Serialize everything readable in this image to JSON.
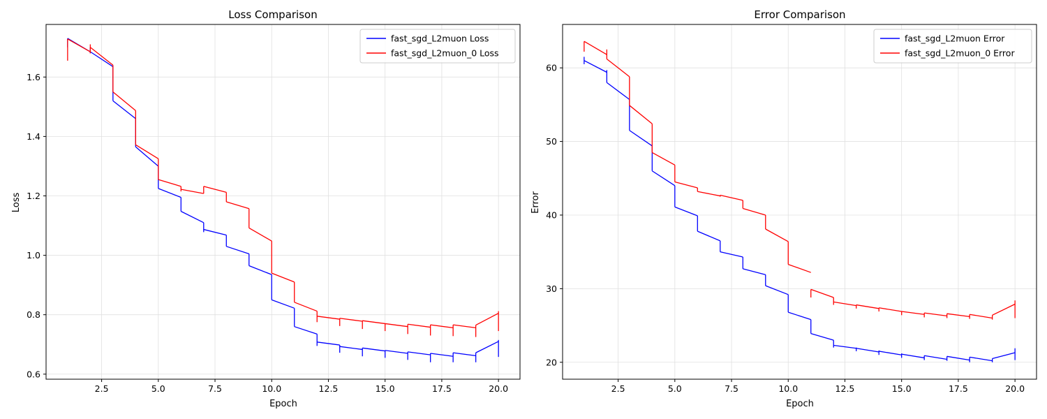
{
  "chart_data": [
    {
      "type": "line",
      "title": "Loss Comparison",
      "xlabel": "Epoch",
      "ylabel": "Loss",
      "xlim": [
        0.05,
        20.95
      ],
      "ylim": [
        0.583,
        1.777
      ],
      "xticks": [
        2.5,
        5.0,
        7.5,
        10.0,
        12.5,
        15.0,
        17.5,
        20.0
      ],
      "xtick_labels": [
        "2.5",
        "5.0",
        "7.5",
        "10.0",
        "12.5",
        "15.0",
        "17.5",
        "20.0"
      ],
      "yticks": [
        0.6,
        0.8,
        1.0,
        1.2,
        1.4,
        1.6
      ],
      "ytick_labels": [
        "0.6",
        "0.8",
        "1.0",
        "1.2",
        "1.4",
        "1.6"
      ],
      "grid": true,
      "legend_position": "top-right",
      "series": [
        {
          "name": "fast_sgd_L2muon Loss",
          "color": "#0000ff",
          "segments": [
            {
              "x0": 1,
              "y0": 1.73,
              "x1": 2,
              "y1": 1.685,
              "spike": [
                1.7,
                1.73
              ]
            },
            {
              "x0": 2,
              "y0": 1.685,
              "x1": 3,
              "y1": 1.635,
              "spike": [
                1.68,
                1.7
              ]
            },
            {
              "x0": 3,
              "y0": 1.52,
              "x1": 4,
              "y1": 1.46,
              "spike": [
                1.52,
                1.635
              ]
            },
            {
              "x0": 4,
              "y0": 1.365,
              "x1": 5,
              "y1": 1.3,
              "spike": [
                1.365,
                1.46
              ]
            },
            {
              "x0": 5,
              "y0": 1.225,
              "x1": 6,
              "y1": 1.195,
              "spike": [
                1.225,
                1.3
              ]
            },
            {
              "x0": 6,
              "y0": 1.148,
              "x1": 7,
              "y1": 1.11,
              "spike": [
                1.148,
                1.195
              ]
            },
            {
              "x0": 7,
              "y0": 1.087,
              "x1": 8,
              "y1": 1.068,
              "spike": [
                1.078,
                1.11
              ]
            },
            {
              "x0": 8,
              "y0": 1.03,
              "x1": 9,
              "y1": 1.005,
              "spike": [
                1.03,
                1.068
              ]
            },
            {
              "x0": 9,
              "y0": 0.965,
              "x1": 10,
              "y1": 0.935,
              "spike": [
                0.965,
                1.005
              ]
            },
            {
              "x0": 10,
              "y0": 0.85,
              "x1": 11,
              "y1": 0.822,
              "spike": [
                0.85,
                0.935
              ]
            },
            {
              "x0": 11,
              "y0": 0.76,
              "x1": 12,
              "y1": 0.735,
              "spike": [
                0.76,
                0.822
              ]
            },
            {
              "x0": 12,
              "y0": 0.708,
              "x1": 13,
              "y1": 0.698,
              "spike": [
                0.695,
                0.735
              ]
            },
            {
              "x0": 13,
              "y0": 0.693,
              "x1": 14,
              "y1": 0.683,
              "spike": [
                0.672,
                0.698
              ]
            },
            {
              "x0": 14,
              "y0": 0.688,
              "x1": 15,
              "y1": 0.678,
              "spike": [
                0.66,
                0.688
              ]
            },
            {
              "x0": 15,
              "y0": 0.68,
              "x1": 16,
              "y1": 0.67,
              "spike": [
                0.655,
                0.68
              ]
            },
            {
              "x0": 16,
              "y0": 0.675,
              "x1": 17,
              "y1": 0.665,
              "spike": [
                0.648,
                0.675
              ]
            },
            {
              "x0": 17,
              "y0": 0.67,
              "x1": 18,
              "y1": 0.66,
              "spike": [
                0.64,
                0.67
              ]
            },
            {
              "x0": 18,
              "y0": 0.672,
              "x1": 19,
              "y1": 0.662,
              "spike": [
                0.64,
                0.672
              ]
            },
            {
              "x0": 19,
              "y0": 0.672,
              "x1": 20,
              "y1": 0.71,
              "spike": [
                0.64,
                0.672
              ]
            }
          ],
          "final_spike": {
            "x": 20,
            "y": [
              0.658,
              0.715
            ]
          }
        },
        {
          "name": "fast_sgd_L2muon_0 Loss",
          "color": "#ff0000",
          "segments": [
            {
              "x0": 1,
              "y0": 1.728,
              "x1": 2,
              "y1": 1.685,
              "spike": [
                1.655,
                1.728
              ]
            },
            {
              "x0": 2,
              "y0": 1.7,
              "x1": 3,
              "y1": 1.64,
              "spike": [
                1.68,
                1.71
              ]
            },
            {
              "x0": 3,
              "y0": 1.55,
              "x1": 4,
              "y1": 1.487,
              "spike": [
                1.55,
                1.64
              ]
            },
            {
              "x0": 4,
              "y0": 1.372,
              "x1": 5,
              "y1": 1.325,
              "spike": [
                1.372,
                1.487
              ]
            },
            {
              "x0": 5,
              "y0": 1.255,
              "x1": 6,
              "y1": 1.232,
              "spike": [
                1.255,
                1.325
              ]
            },
            {
              "x0": 6,
              "y0": 1.222,
              "x1": 7,
              "y1": 1.208,
              "spike": [
                1.215,
                1.232
              ]
            },
            {
              "x0": 7,
              "y0": 1.232,
              "x1": 8,
              "y1": 1.212,
              "spike": [
                1.208,
                1.232
              ]
            },
            {
              "x0": 8,
              "y0": 1.18,
              "x1": 9,
              "y1": 1.157,
              "spike": [
                1.18,
                1.212
              ]
            },
            {
              "x0": 9,
              "y0": 1.092,
              "x1": 10,
              "y1": 1.048,
              "spike": [
                1.092,
                1.157
              ]
            },
            {
              "x0": 10,
              "y0": 0.94,
              "x1": 11,
              "y1": 0.91,
              "spike": [
                0.94,
                1.048
              ]
            },
            {
              "x0": 11,
              "y0": 0.842,
              "x1": 12,
              "y1": 0.812,
              "spike": [
                0.842,
                0.91
              ]
            },
            {
              "x0": 12,
              "y0": 0.795,
              "x1": 13,
              "y1": 0.785,
              "spike": [
                0.775,
                0.812
              ]
            },
            {
              "x0": 13,
              "y0": 0.788,
              "x1": 14,
              "y1": 0.778,
              "spike": [
                0.762,
                0.788
              ]
            },
            {
              "x0": 14,
              "y0": 0.78,
              "x1": 15,
              "y1": 0.77,
              "spike": [
                0.752,
                0.78
              ]
            },
            {
              "x0": 15,
              "y0": 0.77,
              "x1": 16,
              "y1": 0.76,
              "spike": [
                0.745,
                0.77
              ]
            },
            {
              "x0": 16,
              "y0": 0.768,
              "x1": 17,
              "y1": 0.758,
              "spike": [
                0.735,
                0.768
              ]
            },
            {
              "x0": 17,
              "y0": 0.766,
              "x1": 18,
              "y1": 0.756,
              "spike": [
                0.73,
                0.766
              ]
            },
            {
              "x0": 18,
              "y0": 0.766,
              "x1": 19,
              "y1": 0.756,
              "spike": [
                0.728,
                0.766
              ]
            },
            {
              "x0": 19,
              "y0": 0.765,
              "x1": 20,
              "y1": 0.805,
              "spike": [
                0.725,
                0.765
              ]
            }
          ],
          "final_spike": {
            "x": 20,
            "y": [
              0.745,
              0.812
            ]
          }
        }
      ]
    },
    {
      "type": "line",
      "title": "Error Comparison",
      "xlabel": "Epoch",
      "ylabel": "Error",
      "xlim": [
        0.05,
        20.95
      ],
      "ylim": [
        17.7,
        65.9
      ],
      "xticks": [
        2.5,
        5.0,
        7.5,
        10.0,
        12.5,
        15.0,
        17.5,
        20.0
      ],
      "xtick_labels": [
        "2.5",
        "5.0",
        "7.5",
        "10.0",
        "12.5",
        "15.0",
        "17.5",
        "20.0"
      ],
      "yticks": [
        20,
        30,
        40,
        50,
        60
      ],
      "ytick_labels": [
        "20",
        "30",
        "40",
        "50",
        "60"
      ],
      "grid": true,
      "legend_position": "top-right",
      "series": [
        {
          "name": "fast_sgd_L2muon Error",
          "color": "#0000ff",
          "segments": [
            {
              "x0": 1,
              "y0": 61.0,
              "x1": 2,
              "y1": 59.4,
              "spike": [
                60.5,
                61.5
              ]
            },
            {
              "x0": 2,
              "y0": 58.0,
              "x1": 3,
              "y1": 55.7,
              "spike": [
                58.0,
                59.7
              ]
            },
            {
              "x0": 3,
              "y0": 51.5,
              "x1": 4,
              "y1": 49.4,
              "spike": [
                51.5,
                55.7
              ]
            },
            {
              "x0": 4,
              "y0": 46.0,
              "x1": 5,
              "y1": 44.0,
              "spike": [
                46.0,
                49.4
              ]
            },
            {
              "x0": 5,
              "y0": 41.1,
              "x1": 6,
              "y1": 39.9,
              "spike": [
                41.1,
                44.0
              ]
            },
            {
              "x0": 6,
              "y0": 37.8,
              "x1": 7,
              "y1": 36.5,
              "spike": [
                37.8,
                39.9
              ]
            },
            {
              "x0": 7,
              "y0": 35.0,
              "x1": 8,
              "y1": 34.3,
              "spike": [
                35.0,
                36.5
              ]
            },
            {
              "x0": 8,
              "y0": 32.7,
              "x1": 9,
              "y1": 31.9,
              "spike": [
                32.7,
                34.3
              ]
            },
            {
              "x0": 9,
              "y0": 30.4,
              "x1": 10,
              "y1": 29.2,
              "spike": [
                30.4,
                31.9
              ]
            },
            {
              "x0": 10,
              "y0": 26.8,
              "x1": 11,
              "y1": 25.8,
              "spike": [
                26.8,
                29.2
              ]
            },
            {
              "x0": 11,
              "y0": 23.9,
              "x1": 12,
              "y1": 23.0,
              "spike": [
                23.9,
                25.8
              ]
            },
            {
              "x0": 12,
              "y0": 22.3,
              "x1": 13,
              "y1": 21.9,
              "spike": [
                22.0,
                23.0
              ]
            },
            {
              "x0": 13,
              "y0": 21.9,
              "x1": 14,
              "y1": 21.4,
              "spike": [
                21.5,
                22.0
              ]
            },
            {
              "x0": 14,
              "y0": 21.5,
              "x1": 15,
              "y1": 21.0,
              "spike": [
                21.0,
                21.6
              ]
            },
            {
              "x0": 15,
              "y0": 21.1,
              "x1": 16,
              "y1": 20.6,
              "spike": [
                20.6,
                21.2
              ]
            },
            {
              "x0": 16,
              "y0": 20.9,
              "x1": 17,
              "y1": 20.4,
              "spike": [
                20.3,
                20.9
              ]
            },
            {
              "x0": 17,
              "y0": 20.8,
              "x1": 18,
              "y1": 20.3,
              "spike": [
                20.2,
                20.8
              ]
            },
            {
              "x0": 18,
              "y0": 20.7,
              "x1": 19,
              "y1": 20.2,
              "spike": [
                20.0,
                20.7
              ]
            },
            {
              "x0": 19,
              "y0": 20.5,
              "x1": 20,
              "y1": 21.3,
              "spike": [
                20.0,
                20.5
              ]
            }
          ],
          "final_spike": {
            "x": 20,
            "y": [
              20.3,
              21.9
            ]
          }
        },
        {
          "name": "fast_sgd_L2muon_0 Error",
          "color": "#ff0000",
          "segments": [
            {
              "x0": 1,
              "y0": 63.6,
              "x1": 2,
              "y1": 61.8,
              "spike": [
                62.2,
                63.6
              ]
            },
            {
              "x0": 2,
              "y0": 61.2,
              "x1": 3,
              "y1": 58.8,
              "spike": [
                61.2,
                62.5
              ]
            },
            {
              "x0": 3,
              "y0": 54.9,
              "x1": 4,
              "y1": 52.4,
              "spike": [
                54.9,
                58.8
              ]
            },
            {
              "x0": 4,
              "y0": 48.5,
              "x1": 5,
              "y1": 46.8,
              "spike": [
                48.5,
                52.4
              ]
            },
            {
              "x0": 5,
              "y0": 44.5,
              "x1": 6,
              "y1": 43.7,
              "spike": [
                44.5,
                46.8
              ]
            },
            {
              "x0": 6,
              "y0": 43.2,
              "x1": 7,
              "y1": 42.6,
              "spike": [
                43.2,
                43.7
              ]
            },
            {
              "x0": 7,
              "y0": 42.7,
              "x1": 8,
              "y1": 42.0,
              "spike": [
                42.5,
                42.7
              ]
            },
            {
              "x0": 8,
              "y0": 40.9,
              "x1": 9,
              "y1": 40.0,
              "spike": [
                40.9,
                42.0
              ]
            },
            {
              "x0": 9,
              "y0": 38.1,
              "x1": 10,
              "y1": 36.4,
              "spike": [
                38.1,
                40.0
              ]
            },
            {
              "x0": 10,
              "y0": 33.3,
              "x1": 11,
              "y1": 32.2,
              "spike": [
                33.3,
                36.4
              ]
            },
            {
              "x0": 11,
              "y0": 29.9,
              "x1": 12,
              "y1": 28.8,
              "spike": [
                29.9,
                28.8
              ]
            },
            {
              "x0": 12,
              "y0": 28.2,
              "x1": 13,
              "y1": 27.7,
              "spike": [
                27.8,
                28.8
              ]
            },
            {
              "x0": 13,
              "y0": 27.8,
              "x1": 14,
              "y1": 27.3,
              "spike": [
                27.3,
                27.8
              ]
            },
            {
              "x0": 14,
              "y0": 27.4,
              "x1": 15,
              "y1": 26.9,
              "spike": [
                26.9,
                27.4
              ]
            },
            {
              "x0": 15,
              "y0": 26.9,
              "x1": 16,
              "y1": 26.5,
              "spike": [
                26.4,
                26.9
              ]
            },
            {
              "x0": 16,
              "y0": 26.7,
              "x1": 17,
              "y1": 26.3,
              "spike": [
                26.1,
                26.7
              ]
            },
            {
              "x0": 17,
              "y0": 26.6,
              "x1": 18,
              "y1": 26.2,
              "spike": [
                26.0,
                26.6
              ]
            },
            {
              "x0": 18,
              "y0": 26.5,
              "x1": 19,
              "y1": 26.0,
              "spike": [
                25.9,
                26.5
              ]
            },
            {
              "x0": 19,
              "y0": 26.4,
              "x1": 20,
              "y1": 27.9,
              "spike": [
                25.8,
                26.4
              ]
            }
          ],
          "final_spike": {
            "x": 20,
            "y": [
              26.0,
              28.4
            ]
          }
        }
      ]
    }
  ]
}
